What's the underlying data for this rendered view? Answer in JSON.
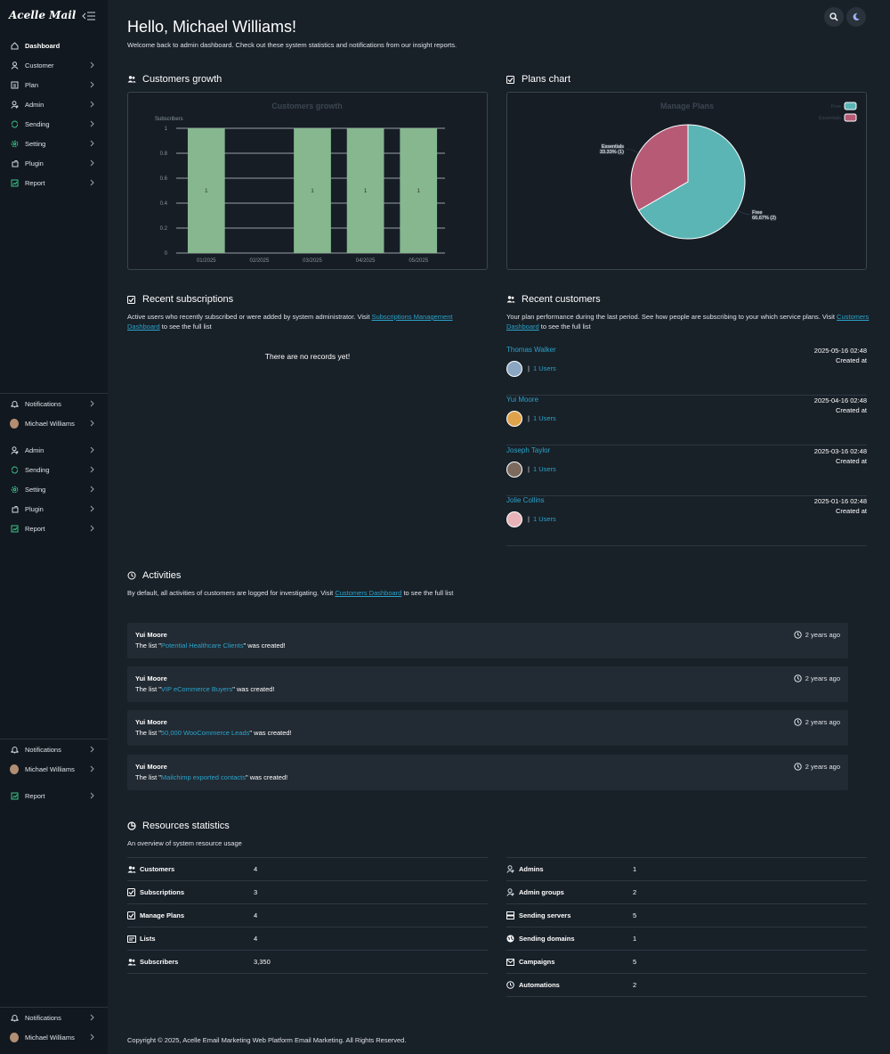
{
  "app": {
    "logo": "Acelle Mail"
  },
  "sidebar": {
    "group1": [
      {
        "label": "Dashboard",
        "icon": "home-icon"
      },
      {
        "label": "Customer",
        "icon": "user-icon"
      },
      {
        "label": "Plan",
        "icon": "plan-icon"
      },
      {
        "label": "Admin",
        "icon": "admin-icon"
      },
      {
        "label": "Sending",
        "icon": "sending-icon"
      },
      {
        "label": "Setting",
        "icon": "gear-icon"
      },
      {
        "label": "Plugin",
        "icon": "plugin-icon"
      },
      {
        "label": "Report",
        "icon": "report-icon"
      }
    ],
    "group2": [
      {
        "label": "Notifications",
        "icon": "bell-icon"
      },
      {
        "label": "Michael Williams",
        "icon": "avatar"
      }
    ],
    "group3": [
      {
        "label": "Admin",
        "icon": "admin-icon"
      },
      {
        "label": "Sending",
        "icon": "sending-icon"
      },
      {
        "label": "Setting",
        "icon": "gear-icon"
      },
      {
        "label": "Plugin",
        "icon": "plugin-icon"
      },
      {
        "label": "Report",
        "icon": "report-icon"
      }
    ],
    "group4": [
      {
        "label": "Notifications",
        "icon": "bell-icon"
      },
      {
        "label": "Michael Williams",
        "icon": "avatar"
      }
    ],
    "group5": [
      {
        "label": "Report",
        "icon": "report-icon"
      }
    ],
    "group6": [
      {
        "label": "Notifications",
        "icon": "bell-icon"
      },
      {
        "label": "Michael Williams",
        "icon": "avatar"
      }
    ]
  },
  "header": {
    "title": "Hello, Michael Williams!",
    "welcome": "Welcome back to admin dashboard. Check out these system statistics and notifications from our insight reports."
  },
  "growth": {
    "section_title": "Customers growth"
  },
  "plans": {
    "section_title": "Plans chart"
  },
  "chart_data": [
    {
      "type": "bar",
      "title": "Customers growth",
      "ylabel": "Subscribers",
      "xlabel": "",
      "categories": [
        "01/2025",
        "02/2025",
        "03/2025",
        "04/2025",
        "05/2025"
      ],
      "values": [
        1,
        0,
        1,
        1,
        1
      ],
      "data_labels": [
        "1",
        "",
        "1",
        "1",
        "1"
      ],
      "y_ticks": [
        "0",
        "0.2",
        "0.4",
        "0.6",
        "0.8",
        "1"
      ],
      "ylim": [
        0,
        1
      ],
      "grid": true,
      "color": "#86b78f"
    },
    {
      "type": "pie",
      "title": "Manage Plans",
      "legend": "top-right",
      "slices": [
        {
          "label": "Free",
          "value": 2,
          "pct_label": "66.67% (2)",
          "color": "#5bb5b5"
        },
        {
          "label": "Essentials",
          "value": 1,
          "pct_label": "33.33% (1)",
          "color": "#b65a76"
        }
      ]
    }
  ],
  "subscriptions": {
    "section_title": "Recent subscriptions",
    "desc_before": "Active users who recently subscribed or were added by system administrator. Visit ",
    "link": "Subscriptions Management Dashboard",
    "desc_after": " to see the full list",
    "empty": "There are no records yet!"
  },
  "customers": {
    "section_title": "Recent customers",
    "desc_before": "Your plan performance during the last period. See how people are subscribing to your which service plans. Visit ",
    "link": "Customers Dashboard",
    "desc_after": " to see the full list",
    "items": [
      {
        "name": "Thomas Walker",
        "users": "1 Users",
        "date": "2025-05-16 02:48",
        "created": "Created at",
        "avatar": "#8aa6c2"
      },
      {
        "name": "Yui Moore",
        "users": "1 Users",
        "date": "2025-04-16 02:48",
        "created": "Created at",
        "avatar": "#e0a24a"
      },
      {
        "name": "Joseph Taylor",
        "users": "1 Users",
        "date": "2025-03-16 02:48",
        "created": "Created at",
        "avatar": "#7c6a5e"
      },
      {
        "name": "Jolie Collins",
        "users": "1 Users",
        "date": "2025-01-16 02:48",
        "created": "Created at",
        "avatar": "#e7b3b8"
      }
    ]
  },
  "activities": {
    "section_title": "Activities",
    "desc_before": "By default, all activities of customers are logged for investigating. Visit ",
    "link": "Customers Dashboard",
    "desc_after": " to see the full list",
    "items": [
      {
        "who": "Yui Moore",
        "pre": "The list \"",
        "list": "Potential Healthcare Clients",
        "post": "\" was created!",
        "ago": "2 years ago"
      },
      {
        "who": "Yui Moore",
        "pre": "The list \"",
        "list": "VIP eCommerce Buyers",
        "post": "\" was created!",
        "ago": "2 years ago"
      },
      {
        "who": "Yui Moore",
        "pre": "The list \"",
        "list": "50,000 WooCommerce Leads",
        "post": "\" was created!",
        "ago": "2 years ago"
      },
      {
        "who": "Yui Moore",
        "pre": "The list \"",
        "list": "Mailchimp exported contacts",
        "post": "\" was created!",
        "ago": "2 years ago"
      }
    ]
  },
  "resources": {
    "section_title": "Resources statistics",
    "desc": "An overview of system resource usage",
    "left": [
      {
        "label": "Customers",
        "value": "4",
        "icon": "users-icon"
      },
      {
        "label": "Subscriptions",
        "value": "3",
        "icon": "check-square-icon"
      },
      {
        "label": "Manage Plans",
        "value": "4",
        "icon": "check-square-icon"
      },
      {
        "label": "Lists",
        "value": "4",
        "icon": "list-icon"
      },
      {
        "label": "Subscribers",
        "value": "3,350",
        "icon": "users-icon"
      }
    ],
    "right": [
      {
        "label": "Admins",
        "value": "1",
        "icon": "admin-icon"
      },
      {
        "label": "Admin groups",
        "value": "2",
        "icon": "admin-icon"
      },
      {
        "label": "Sending servers",
        "value": "5",
        "icon": "server-icon"
      },
      {
        "label": "Sending domains",
        "value": "1",
        "icon": "globe-icon"
      },
      {
        "label": "Campaigns",
        "value": "5",
        "icon": "mail-icon"
      },
      {
        "label": "Automations",
        "value": "2",
        "icon": "clock-icon"
      }
    ]
  },
  "footer": {
    "text": "Copyright © 2025, Acelle Email Marketing Web Platform Email Marketing. All Rights Reserved."
  }
}
